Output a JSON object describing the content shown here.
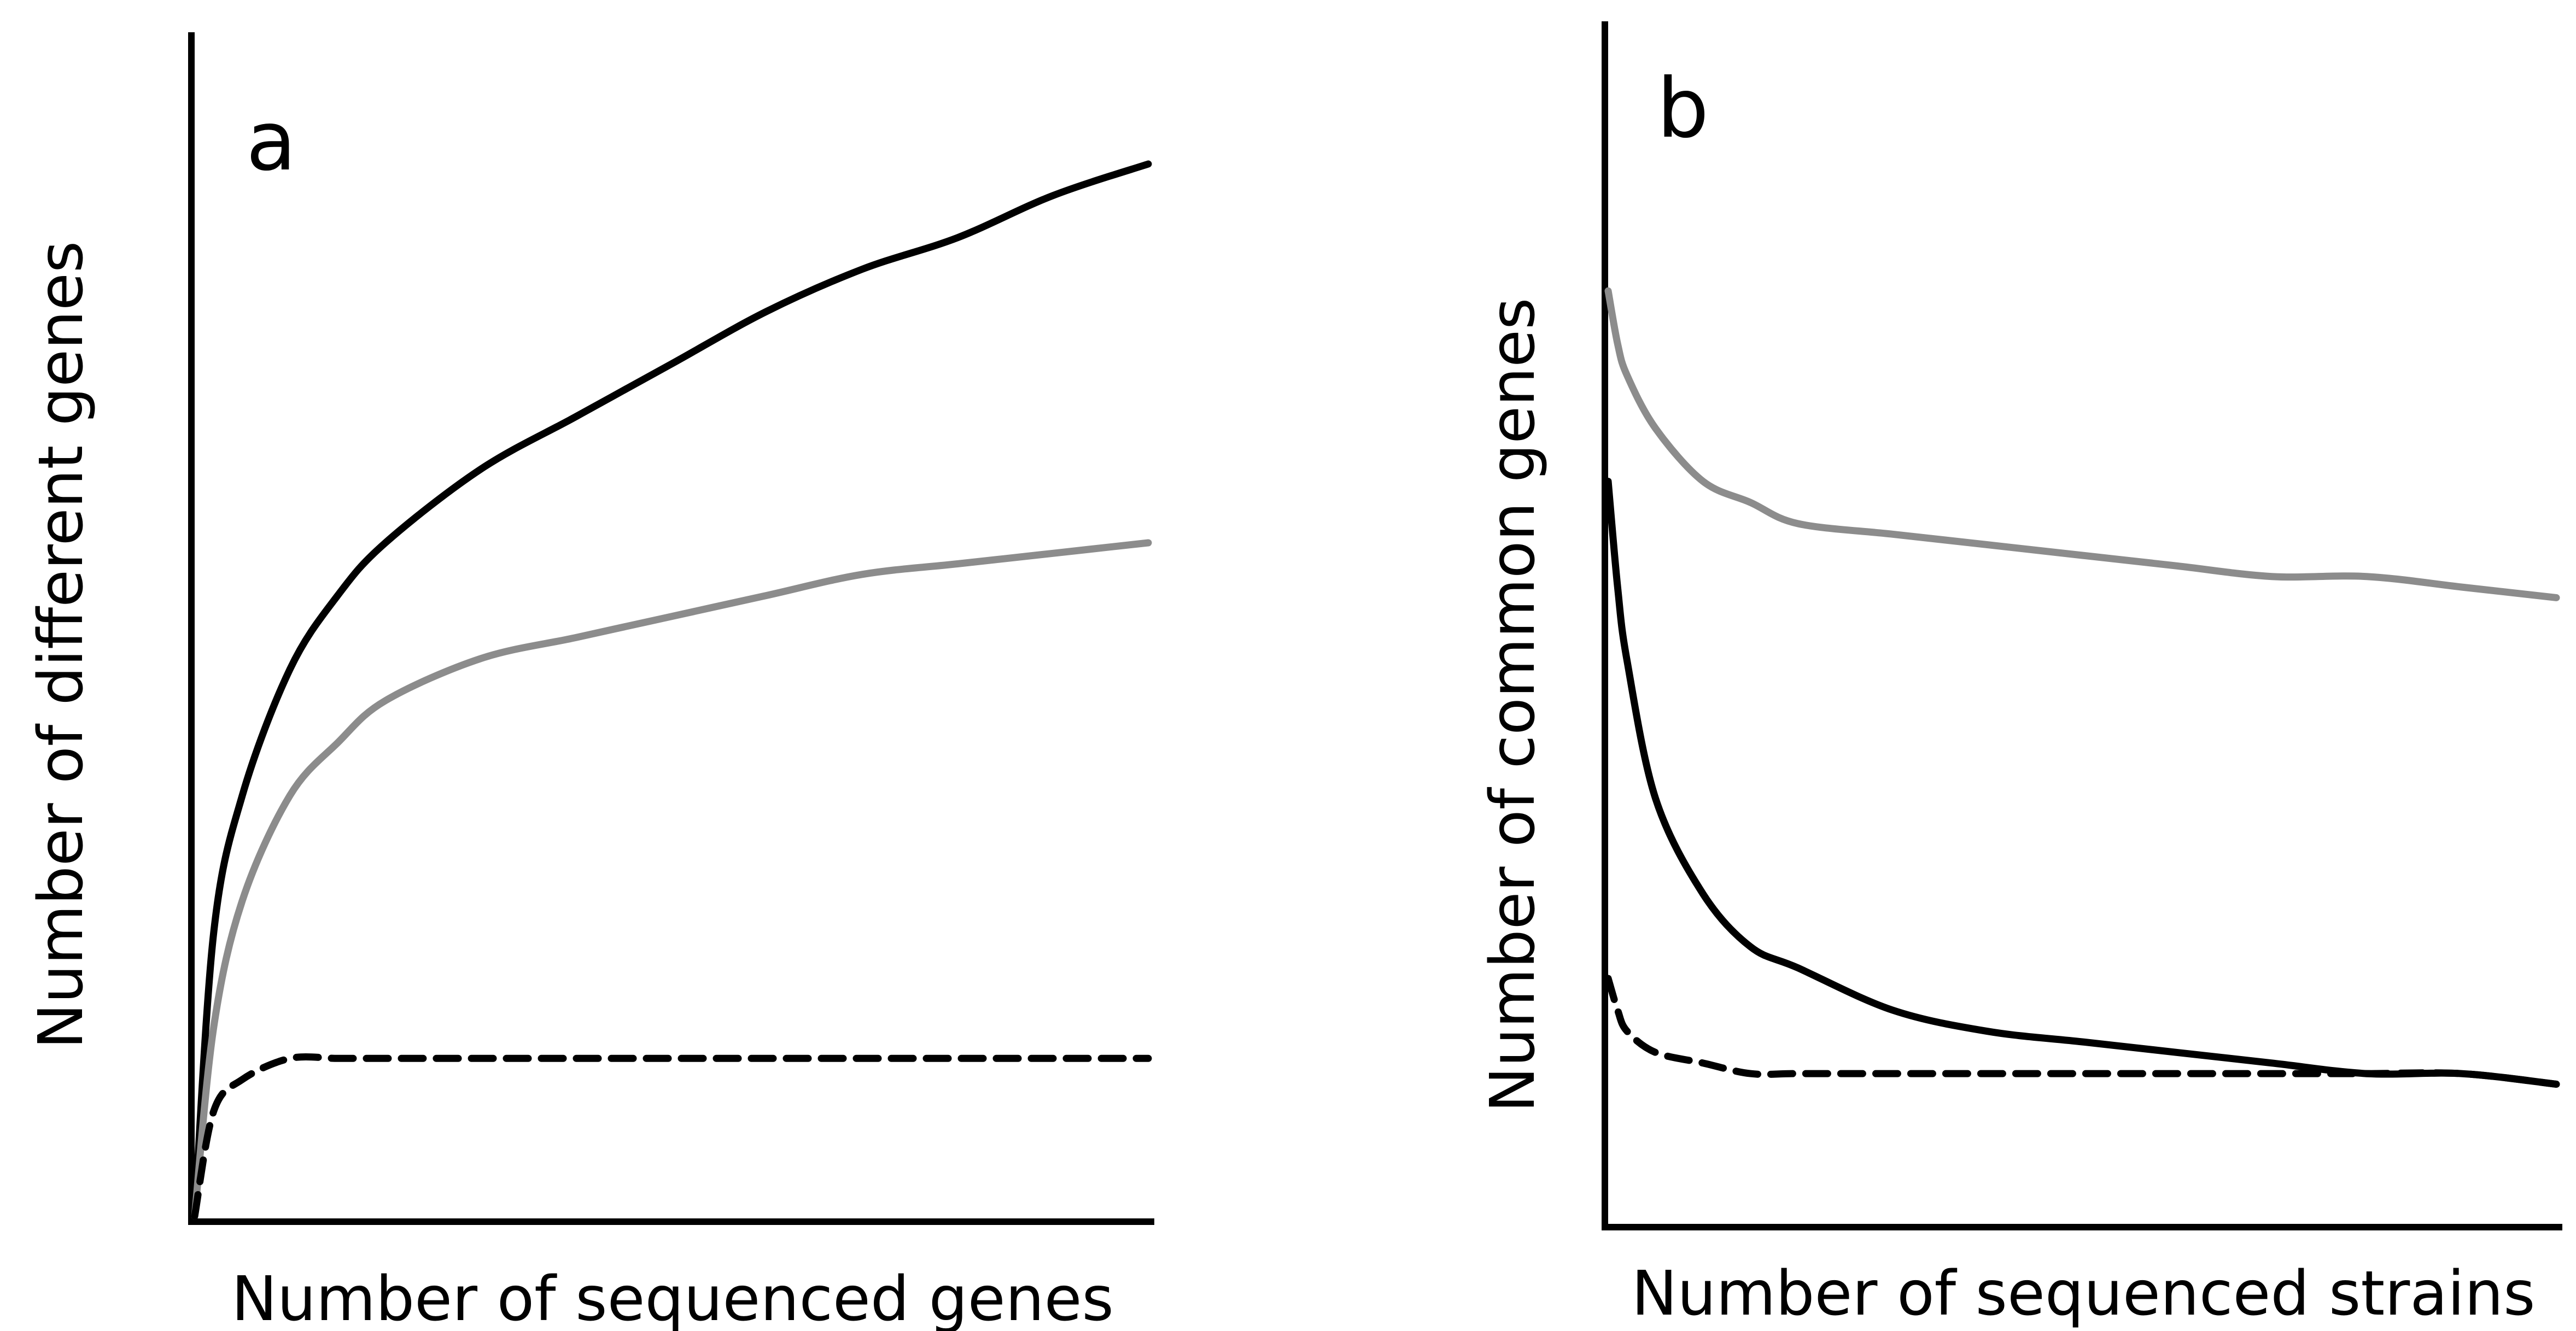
{
  "chart_data": [
    {
      "type": "line",
      "panel_label": "a",
      "xlabel": "Number of sequenced genes",
      "ylabel": "Number of different genes",
      "xlim": [
        0,
        100
      ],
      "ylim": [
        0,
        100
      ],
      "grid": false,
      "x": [
        0,
        2,
        5,
        10,
        15,
        20,
        30,
        40,
        50,
        60,
        70,
        80,
        90,
        100
      ],
      "series": [
        {
          "style": "solid",
          "color": "#000000",
          "values": [
            0,
            27,
            40,
            52,
            59,
            64,
            71,
            76,
            81,
            86,
            90,
            93,
            97,
            100
          ]
        },
        {
          "style": "solid",
          "color": "#8c8c8c",
          "values": [
            0,
            18,
            30,
            40,
            45,
            49,
            53,
            55,
            57,
            59,
            61,
            62,
            63,
            64
          ]
        },
        {
          "style": "dashed",
          "color": "#000000",
          "values": [
            0,
            10,
            13,
            15,
            15,
            15,
            15,
            15,
            15,
            15,
            15,
            15,
            15,
            15
          ]
        }
      ]
    },
    {
      "type": "line",
      "panel_label": "b",
      "xlabel": "Number of sequenced strains",
      "ylabel": "Number of common genes",
      "xlim": [
        0,
        100
      ],
      "ylim": [
        0,
        100
      ],
      "grid": false,
      "x": [
        0,
        1,
        2,
        5,
        10,
        15,
        20,
        30,
        40,
        50,
        60,
        70,
        80,
        90,
        100
      ],
      "series": [
        {
          "style": "solid",
          "color": "#8c8c8c",
          "values": [
            88,
            83,
            80,
            75,
            70,
            68,
            66,
            65,
            64,
            63,
            62,
            61,
            61,
            60,
            59
          ]
        },
        {
          "style": "solid",
          "color": "#000000",
          "values": [
            70,
            60,
            53,
            40,
            31,
            26,
            24,
            20,
            18,
            17,
            16,
            15,
            14,
            14,
            13
          ]
        },
        {
          "style": "dashed",
          "color": "#000000",
          "values": [
            23,
            20,
            18,
            16,
            15,
            14,
            14,
            14,
            14,
            14,
            14,
            14,
            14,
            14,
            13
          ]
        }
      ]
    }
  ]
}
